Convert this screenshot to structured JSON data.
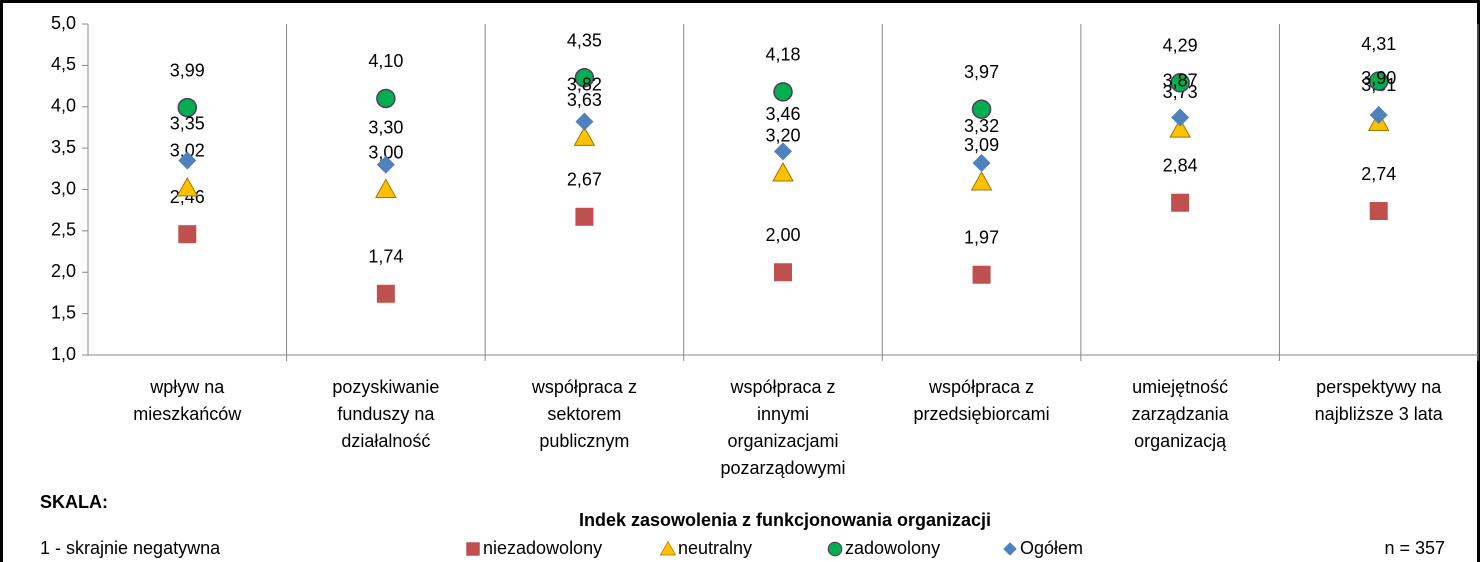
{
  "chart_data": {
    "type": "scatter",
    "categories": [
      [
        "wpływ na",
        "mieszkańców"
      ],
      [
        "pozyskiwanie",
        "funduszy na",
        "działalność"
      ],
      [
        "współpraca z",
        "sektorem",
        "publicznym"
      ],
      [
        "współpraca z",
        "innymi",
        "organizacjami",
        "pozarządowymi"
      ],
      [
        "współpraca z",
        "przedsiębiorcami"
      ],
      [
        "umiejętność",
        "zarządzania",
        "organizacją"
      ],
      [
        "perspektywy na",
        "najbliższe 3 lata"
      ]
    ],
    "series": [
      {
        "name": "niezadowolony",
        "color": "#c0504d",
        "marker": "square",
        "values": [
          2.46,
          1.74,
          2.67,
          2.0,
          1.97,
          2.84,
          2.74
        ],
        "value_labels": [
          "2,46",
          "1,74",
          "2,67",
          "2,00",
          "1,97",
          "2,84",
          "2,74"
        ]
      },
      {
        "name": "neutralny",
        "color": "#ffc000",
        "marker": "triangle",
        "values": [
          3.02,
          3.0,
          3.63,
          3.2,
          3.09,
          3.73,
          3.81
        ],
        "value_labels": [
          "3,02",
          "3,00",
          "3,63",
          "3,20",
          "3,09",
          "3,73",
          "3,81"
        ]
      },
      {
        "name": "zadowolony",
        "color": "#00b050",
        "marker": "circle",
        "values": [
          3.99,
          4.1,
          4.35,
          4.18,
          3.97,
          4.29,
          4.31
        ],
        "value_labels": [
          "3,99",
          "4,10",
          "4,35",
          "4,18",
          "3,97",
          "4,29",
          "4,31"
        ]
      },
      {
        "name": "Ogółem",
        "color": "#4f81bd",
        "marker": "diamond",
        "values": [
          3.35,
          3.3,
          3.82,
          3.46,
          3.32,
          3.87,
          3.9
        ],
        "value_labels": [
          "3,35",
          "3,30",
          "3,82",
          "3,46",
          "3,32",
          "3,87",
          "3,90"
        ]
      }
    ],
    "ylim": [
      1,
      5
    ],
    "yticks": [
      {
        "value": 1,
        "label": "1,0"
      },
      {
        "value": 1.5,
        "label": "1,5"
      },
      {
        "value": 2,
        "label": "2,0"
      },
      {
        "value": 2.5,
        "label": "2,5"
      },
      {
        "value": 3,
        "label": "3,0"
      },
      {
        "value": 3.5,
        "label": "3,5"
      },
      {
        "value": 4,
        "label": "4,0"
      },
      {
        "value": 4.5,
        "label": "4,5"
      },
      {
        "value": 5,
        "label": "5,0"
      }
    ],
    "x_title": "Indek zasowolenia z funkcjonowania organizacji",
    "scale_title": "SKALA:",
    "scale_note": "1 - skrajnie negatywna",
    "n_note": "n = 357",
    "legend": "bottom"
  }
}
